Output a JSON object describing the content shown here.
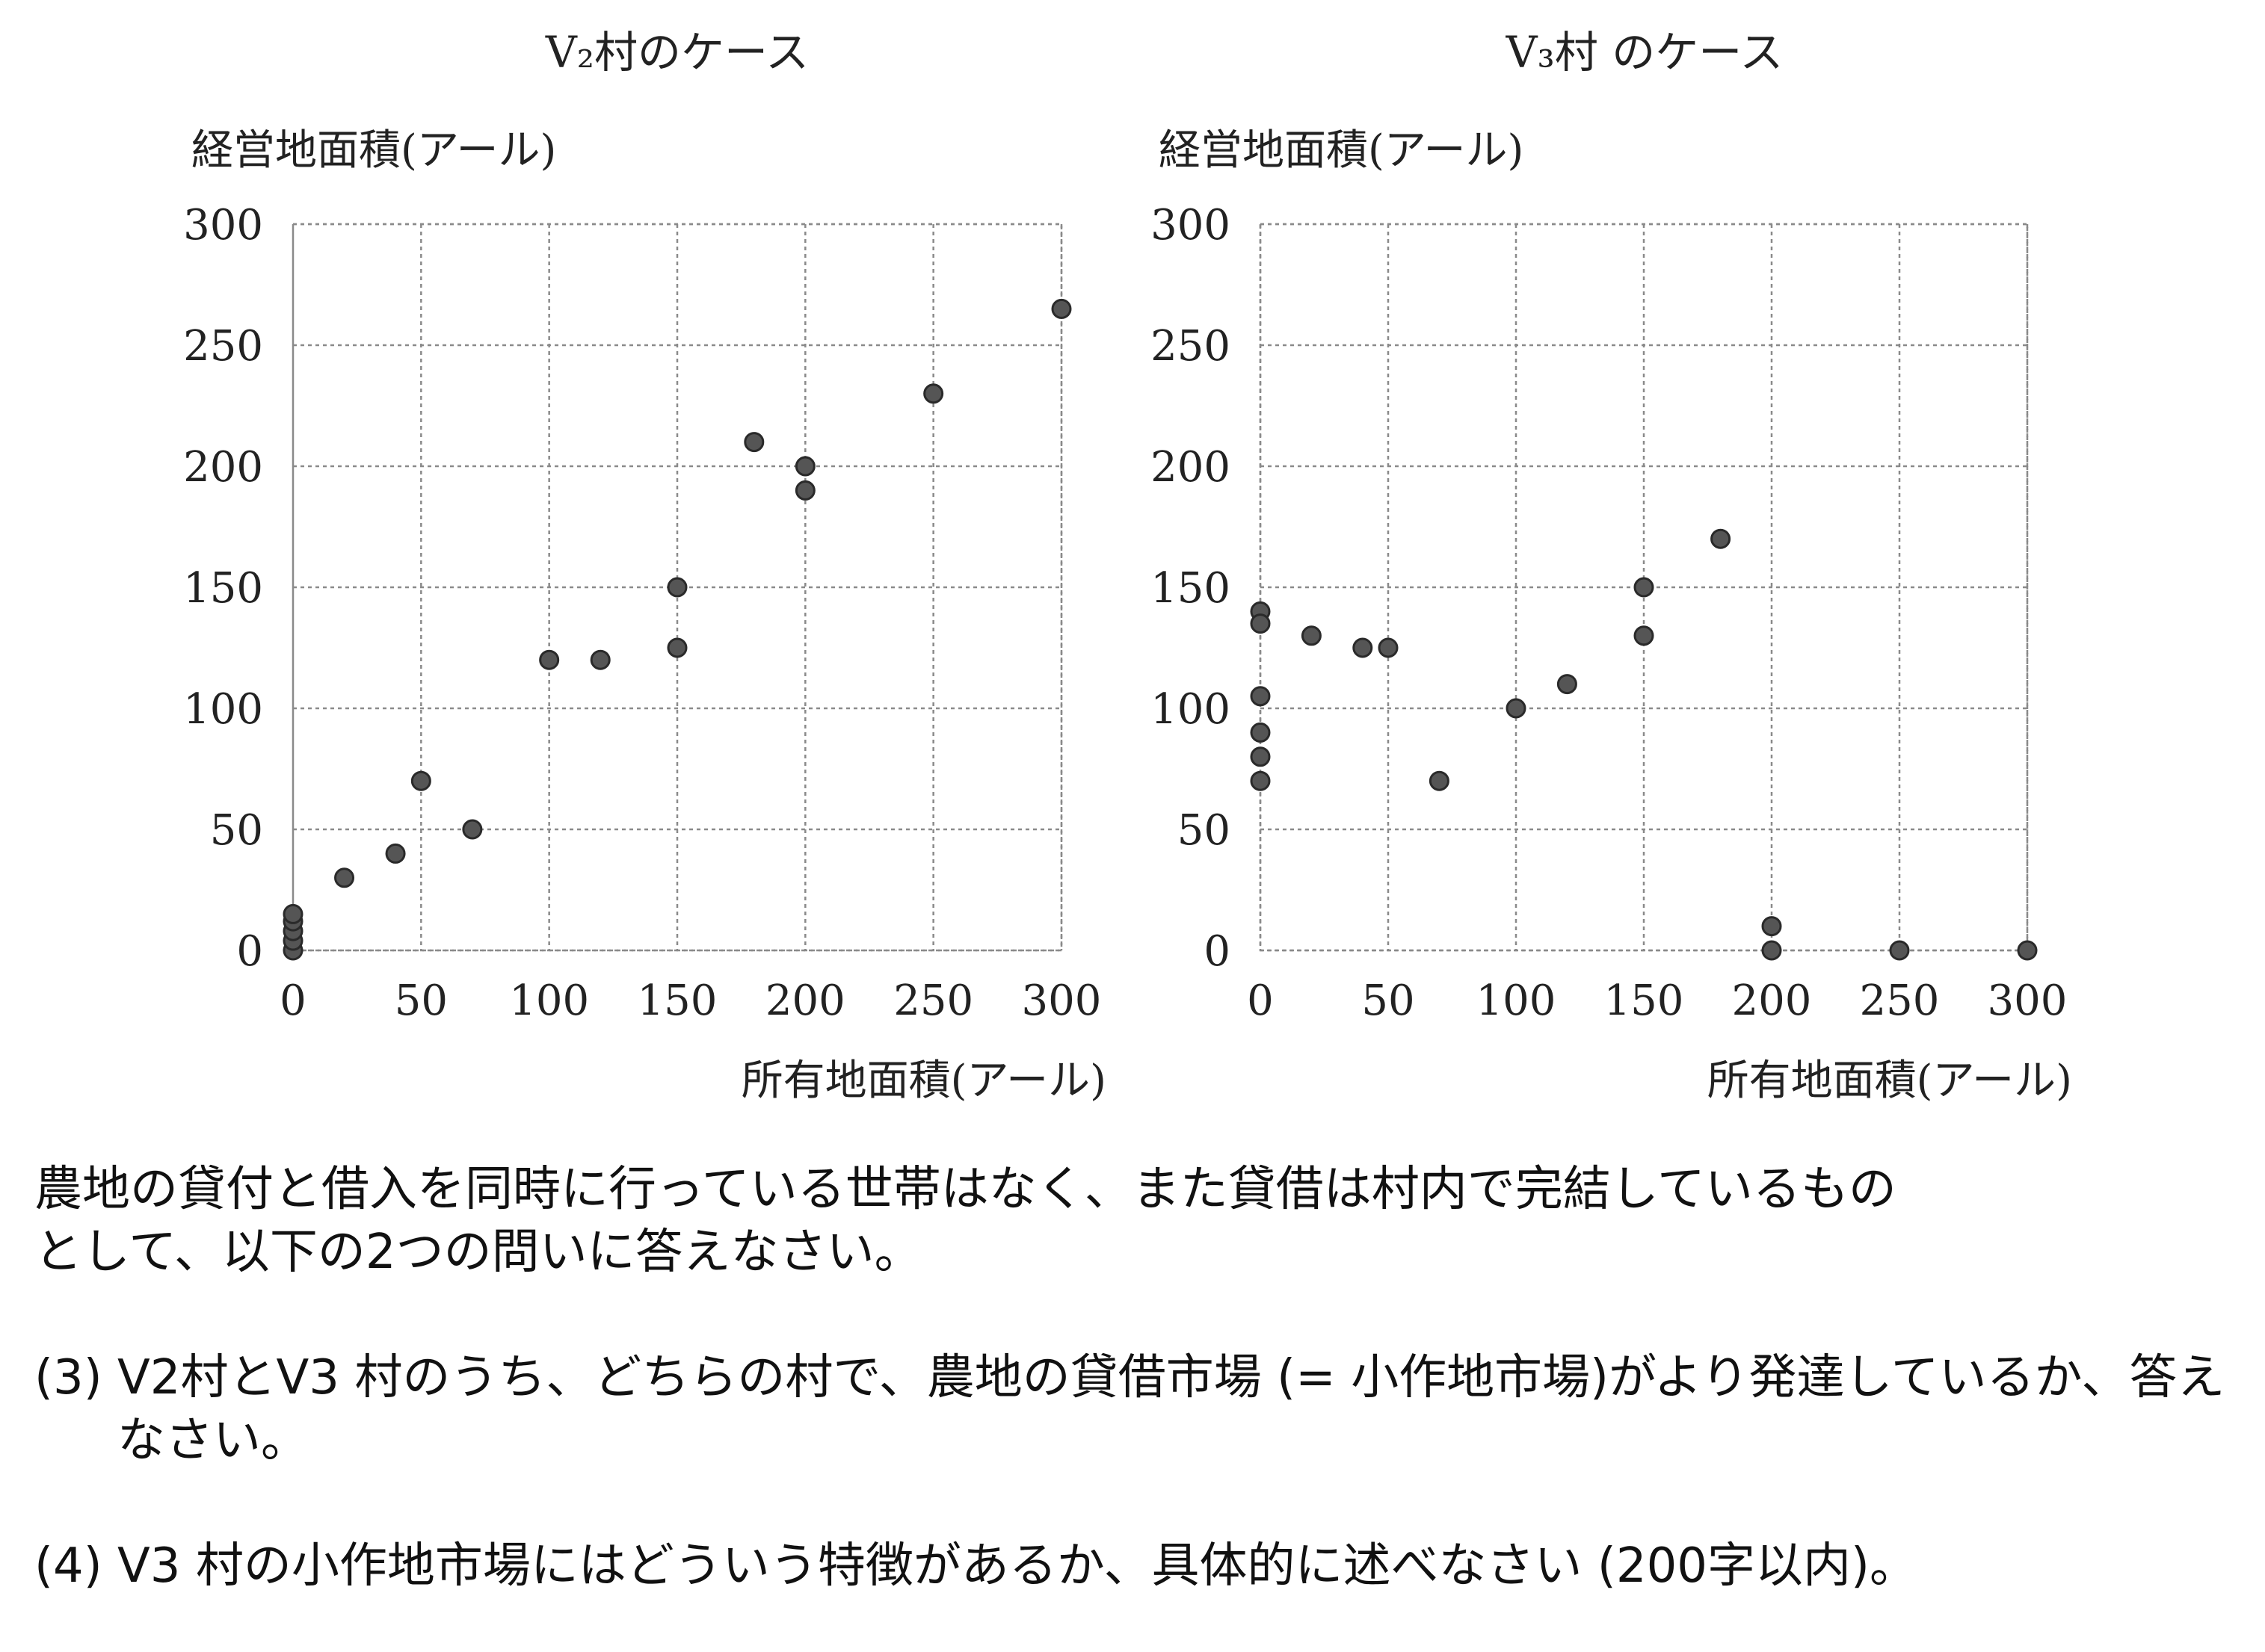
{
  "chart_data": [
    {
      "type": "scatter",
      "title": "V₂村のケース",
      "ylabel": "経営地面積(アール)",
      "xlabel": "所有地面積(アール)",
      "xlim": [
        0,
        300
      ],
      "ylim": [
        0,
        300
      ],
      "x_ticks": [
        "0",
        "50",
        "100",
        "150",
        "200",
        "250",
        "300"
      ],
      "y_ticks": [
        "300",
        "250",
        "200",
        "150",
        "100",
        "50",
        "0"
      ],
      "grid": true,
      "points": [
        {
          "x": 0,
          "y": 0
        },
        {
          "x": 0,
          "y": 4
        },
        {
          "x": 0,
          "y": 8
        },
        {
          "x": 0,
          "y": 12
        },
        {
          "x": 0,
          "y": 15
        },
        {
          "x": 20,
          "y": 30
        },
        {
          "x": 40,
          "y": 40
        },
        {
          "x": 50,
          "y": 70
        },
        {
          "x": 70,
          "y": 50
        },
        {
          "x": 100,
          "y": 120
        },
        {
          "x": 120,
          "y": 120
        },
        {
          "x": 150,
          "y": 150
        },
        {
          "x": 150,
          "y": 125
        },
        {
          "x": 180,
          "y": 210
        },
        {
          "x": 200,
          "y": 200
        },
        {
          "x": 200,
          "y": 190
        },
        {
          "x": 250,
          "y": 230
        },
        {
          "x": 300,
          "y": 265
        }
      ]
    },
    {
      "type": "scatter",
      "title": "V₃村 のケース",
      "ylabel": "経営地面積(アール)",
      "xlabel": "所有地面積(アール)",
      "xlim": [
        0,
        300
      ],
      "ylim": [
        0,
        300
      ],
      "x_ticks": [
        "0",
        "50",
        "100",
        "150",
        "200",
        "250",
        "300"
      ],
      "y_ticks": [
        "300",
        "250",
        "200",
        "150",
        "100",
        "50",
        "0"
      ],
      "grid": true,
      "points": [
        {
          "x": 0,
          "y": 140
        },
        {
          "x": 0,
          "y": 135
        },
        {
          "x": 0,
          "y": 105
        },
        {
          "x": 0,
          "y": 90
        },
        {
          "x": 0,
          "y": 80
        },
        {
          "x": 0,
          "y": 70
        },
        {
          "x": 20,
          "y": 130
        },
        {
          "x": 40,
          "y": 125
        },
        {
          "x": 50,
          "y": 125
        },
        {
          "x": 70,
          "y": 70
        },
        {
          "x": 100,
          "y": 100
        },
        {
          "x": 120,
          "y": 110
        },
        {
          "x": 150,
          "y": 150
        },
        {
          "x": 150,
          "y": 130
        },
        {
          "x": 180,
          "y": 170
        },
        {
          "x": 200,
          "y": 10
        },
        {
          "x": 200,
          "y": 0
        },
        {
          "x": 250,
          "y": 0
        },
        {
          "x": 300,
          "y": 0
        }
      ]
    }
  ],
  "text": {
    "intro": "農地の貸付と借入を同時に行っている世帯はなく、また貸借は村内で完結しているもの\nとして、以下の2つの問いに答えなさい。",
    "q3_num": "(3) ",
    "q3_body": "V2村とV3 村のうち、どちらの村で、農地の貸借市場 (= 小作地市場)がより発達しているか、答えなさい。",
    "q4_num": "(4) ",
    "q4_body": "V3 村の小作地市場にはどういう特徴があるか、具体的に述べなさい (200字以内)。"
  }
}
